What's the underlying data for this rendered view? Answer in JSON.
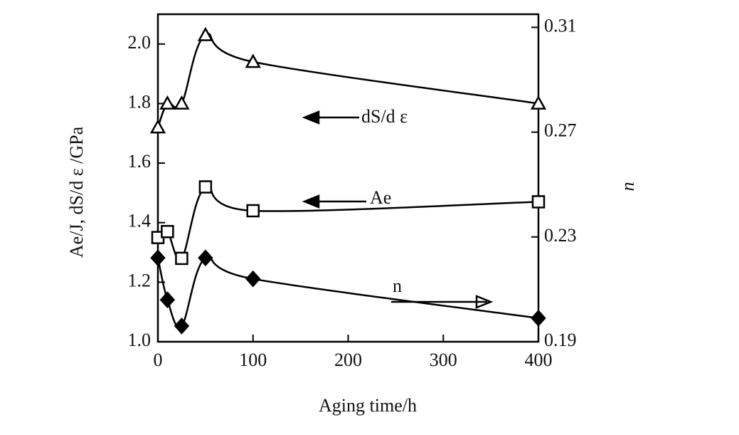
{
  "chart_data": {
    "type": "line",
    "x_label": "Aging time/h",
    "y_label": "Ae/J, dS/d ε /GPa",
    "y2_label": "n",
    "x": [
      0,
      10,
      25,
      50,
      100,
      400
    ],
    "xlim": [
      0,
      400
    ],
    "xticks": [
      0,
      100,
      200,
      300,
      400
    ],
    "ylim": [
      1.0,
      2.1
    ],
    "yticks": [
      {
        "value": 1.0,
        "label": "1.0"
      },
      1.2,
      1.4,
      1.6,
      1.8,
      {
        "value": 2.0,
        "label": "2.0"
      }
    ],
    "y2lim": [
      0.19,
      0.315
    ],
    "y2ticks": [
      0.19,
      0.23,
      0.27,
      0.31
    ],
    "series": [
      {
        "name": "dS/d ε",
        "color": "#000000",
        "marker": "triangle",
        "values": [
          1.72,
          1.8,
          1.8,
          2.03,
          1.94,
          1.8
        ]
      },
      {
        "name": "Ae",
        "color": "#000000",
        "marker": "square",
        "values": [
          1.35,
          1.37,
          1.28,
          1.52,
          1.44,
          1.47
        ]
      },
      {
        "name": "n",
        "color": "#000000",
        "marker": "diamond",
        "axis": "y2",
        "values": [
          0.222,
          0.206,
          0.196,
          0.222,
          0.214,
          0.199
        ]
      }
    ]
  }
}
